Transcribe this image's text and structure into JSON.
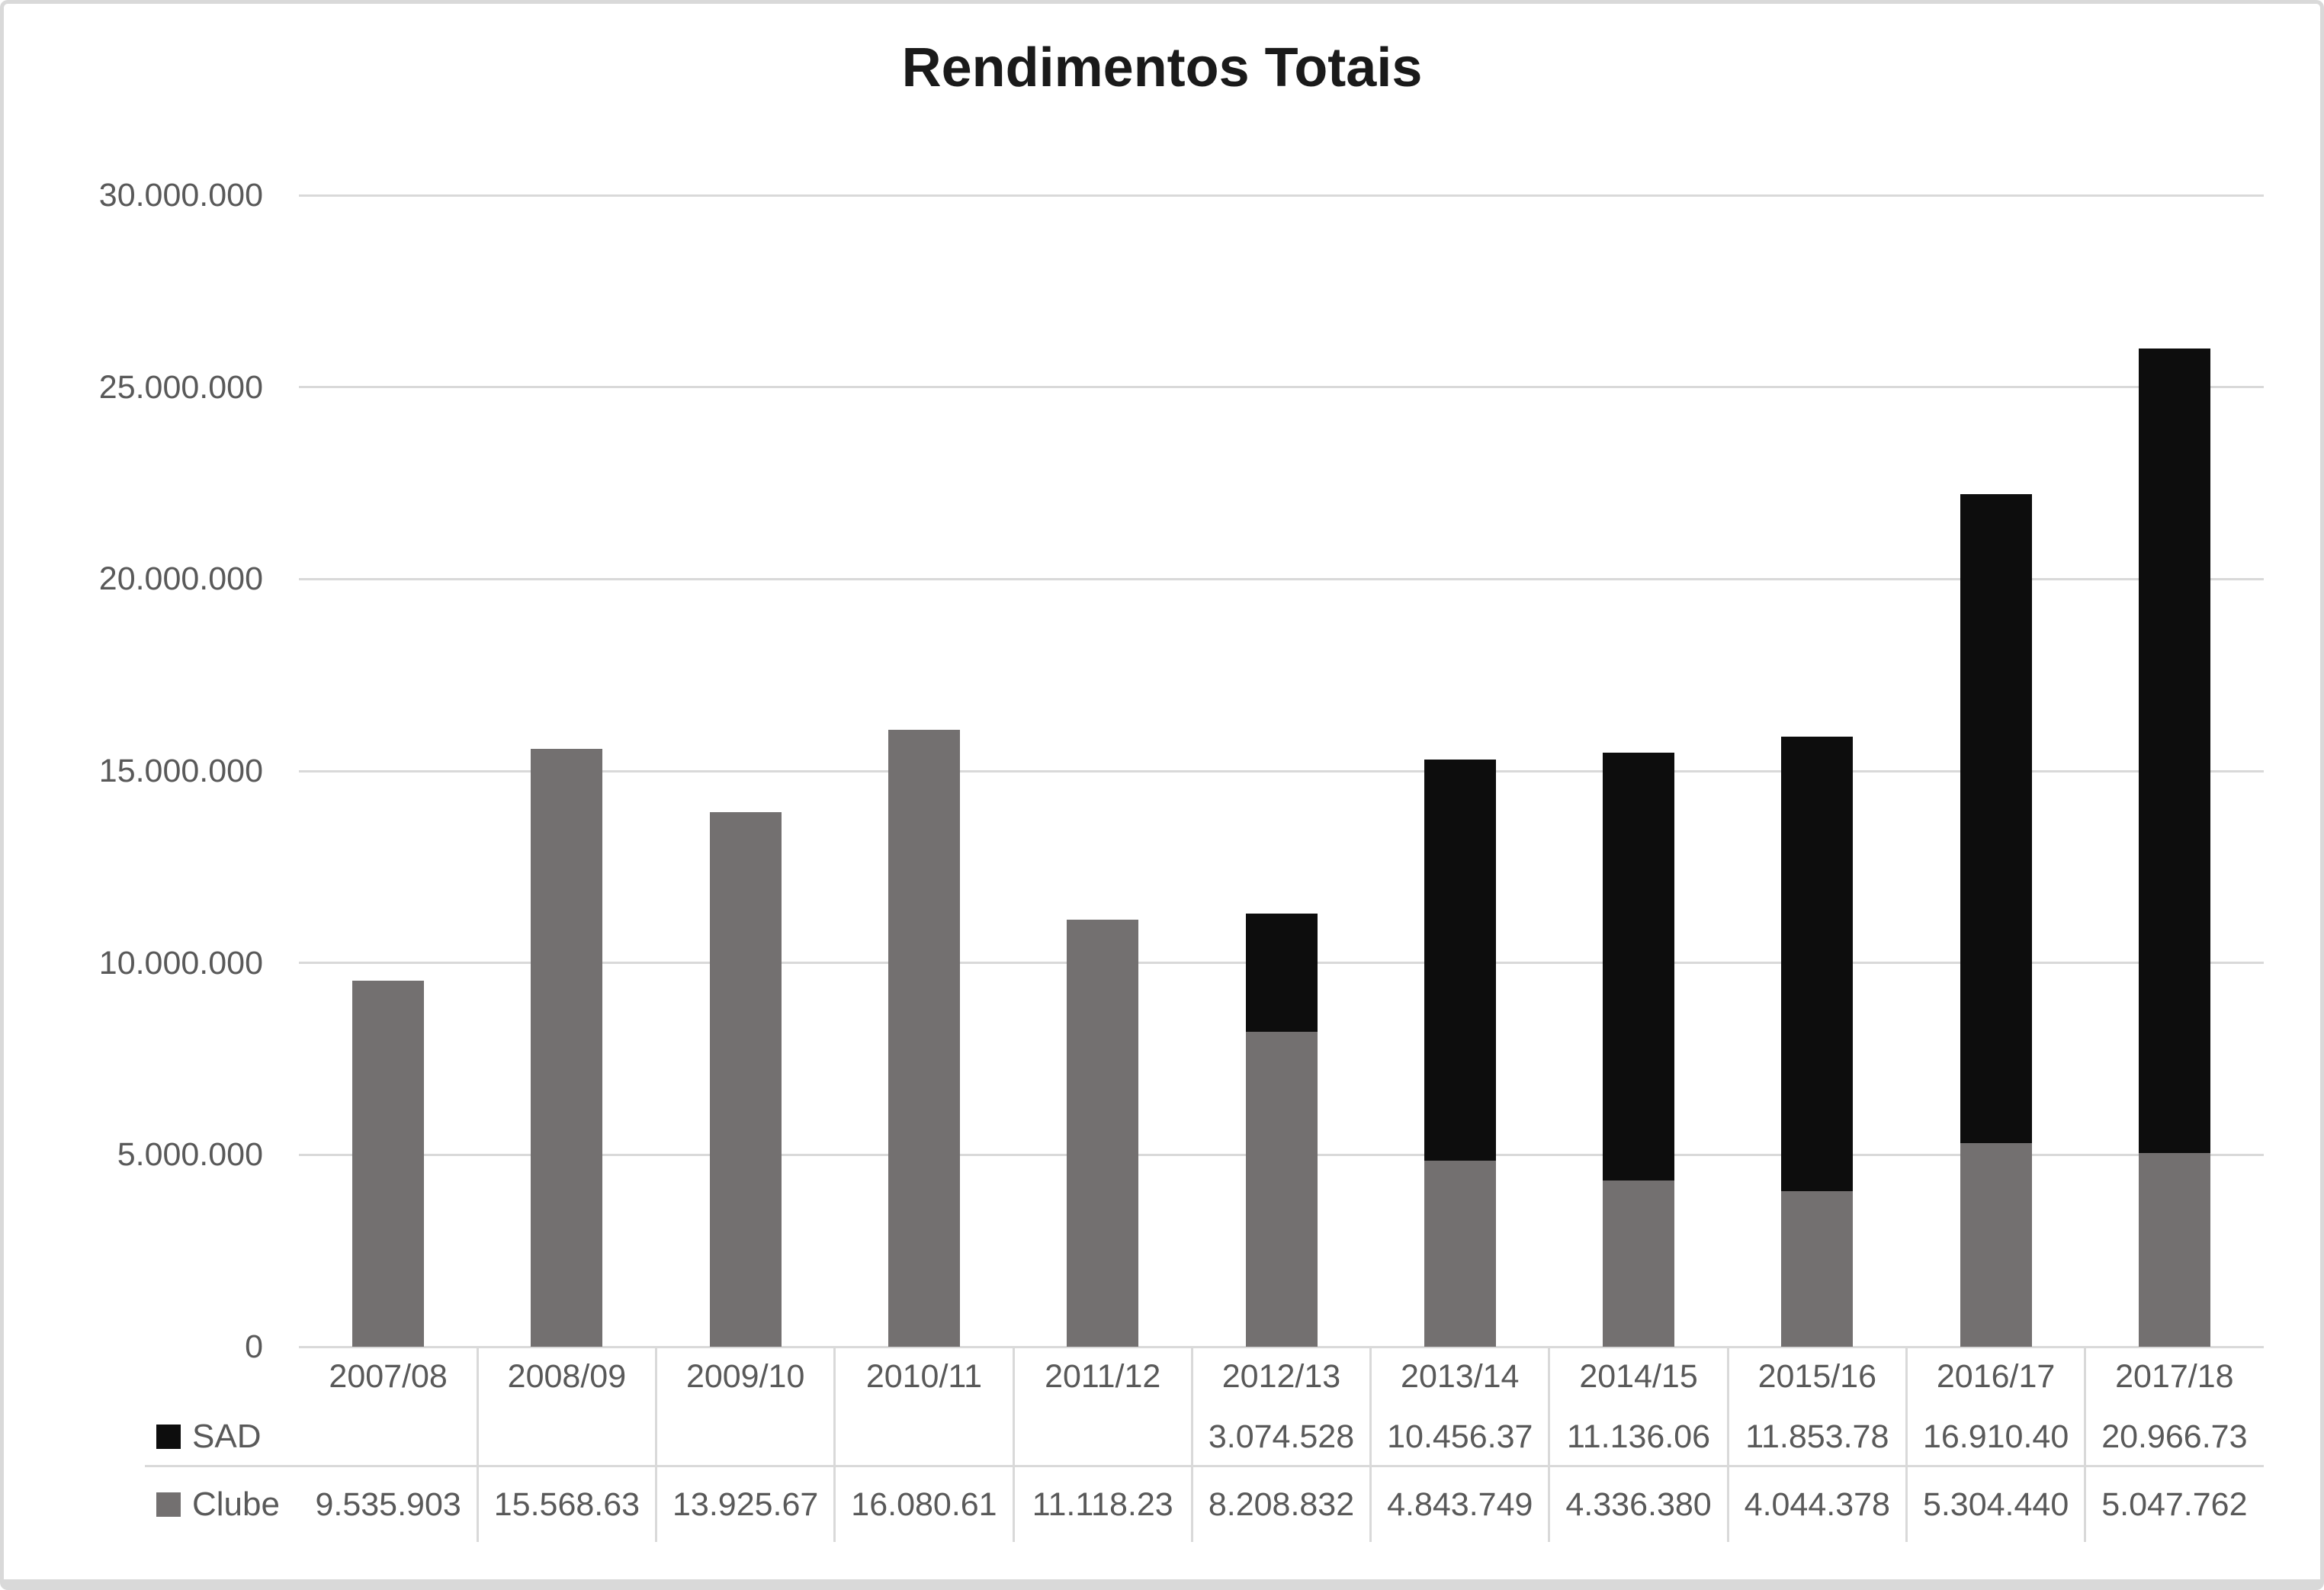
{
  "chart_data": {
    "type": "bar",
    "stacked": true,
    "title": "Rendimentos Totais",
    "categories": [
      "2007/08",
      "2008/09",
      "2009/10",
      "2010/11",
      "2011/12",
      "2012/13",
      "2013/14",
      "2014/15",
      "2015/16",
      "2016/17",
      "2017/18"
    ],
    "series": [
      {
        "name": "SAD",
        "color": "#0D0D0D",
        "values": [
          0,
          0,
          0,
          0,
          0,
          3074528,
          10456370,
          11136060,
          11853780,
          16910400,
          20966730
        ],
        "display": [
          "",
          "",
          "",
          "",
          "",
          "3.074.528",
          "10.456.37",
          "11.136.06",
          "11.853.78",
          "16.910.40",
          "20.966.73"
        ]
      },
      {
        "name": "Clube",
        "color": "#737070",
        "values": [
          9535903,
          15568630,
          13925670,
          16080610,
          11118230,
          8208832,
          4843749,
          4336380,
          4044378,
          5304440,
          5047762
        ],
        "display": [
          "9.535.903",
          "15.568.63",
          "13.925.67",
          "16.080.61",
          "11.118.23",
          "8.208.832",
          "4.843.749",
          "4.336.380",
          "4.044.378",
          "5.304.440",
          "5.047.762"
        ]
      }
    ],
    "ylim": [
      0,
      30000000
    ],
    "y_ticks": [
      "30.000.000",
      "25.000.000",
      "20.000.000",
      "15.000.000",
      "10.000.000",
      "5.000.000",
      "0"
    ],
    "xlabel": "",
    "ylabel": "",
    "grid": true,
    "legend_position": "bottom-left-data-table",
    "colors": {
      "gridline": "#D9D9D9",
      "text": "#595959",
      "title": "#1A1A1A",
      "frame_border": "#D9D9D9",
      "background": "#FFFFFF"
    }
  }
}
